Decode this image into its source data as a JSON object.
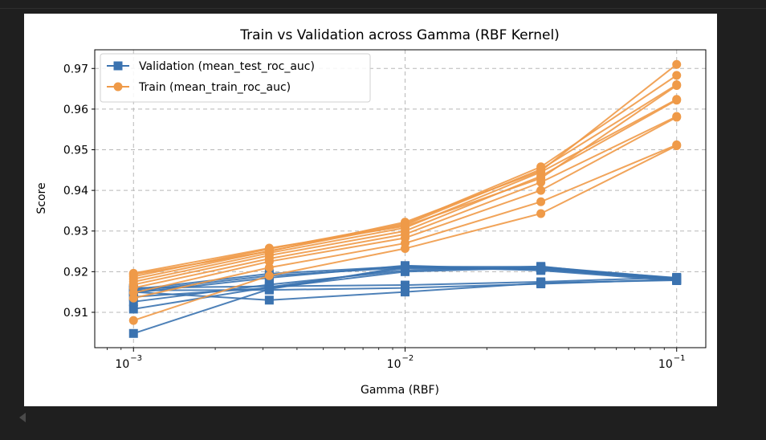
{
  "chart_data": {
    "type": "line",
    "title": "Train vs Validation across Gamma (RBF Kernel)",
    "xlabel": "Gamma (RBF)",
    "ylabel": "Score",
    "xscale": "log",
    "x": [
      0.001,
      0.003162,
      0.01,
      0.031623,
      0.1
    ],
    "xlim": [
      0.00072,
      0.128
    ],
    "ylim": [
      0.9013,
      0.9746
    ],
    "x_ticks": [
      {
        "value": 0.001,
        "base": "10",
        "exp": "−3"
      },
      {
        "value": 0.01,
        "base": "10",
        "exp": "−2"
      },
      {
        "value": 0.1,
        "base": "10",
        "exp": "−1"
      }
    ],
    "y_ticks": [
      "0.91",
      "0.92",
      "0.93",
      "0.94",
      "0.95",
      "0.96",
      "0.97"
    ],
    "grid": true,
    "legend_position": "top-left",
    "series": [
      {
        "name": "Validation (mean_test_roc_auc)",
        "color": "#3b73b0",
        "marker": "square",
        "runs": [
          [
            0.9048,
            0.9157,
            0.9212,
            0.9212,
            0.9184
          ],
          [
            0.9108,
            0.9162,
            0.9208,
            0.9207,
            0.9182
          ],
          [
            0.9126,
            0.9168,
            0.9203,
            0.9213,
            0.9179
          ],
          [
            0.9138,
            0.916,
            0.92,
            0.921,
            0.9185
          ],
          [
            0.9148,
            0.9185,
            0.9215,
            0.9205,
            0.918
          ],
          [
            0.9152,
            0.919,
            0.921,
            0.9208,
            0.9183
          ],
          [
            0.9156,
            0.9195,
            0.9213,
            0.9203,
            0.9178
          ],
          [
            0.916,
            0.9164,
            0.9167,
            0.9175,
            0.9186
          ],
          [
            0.9154,
            0.9155,
            0.916,
            0.917,
            0.9181
          ],
          [
            0.915,
            0.913,
            0.915,
            0.9172,
            0.9179
          ]
        ]
      },
      {
        "name": "Train (mean_train_roc_auc)",
        "color": "#ef9a48",
        "marker": "circle",
        "runs": [
          [
            0.908,
            0.919,
            0.9257,
            0.9343,
            0.951
          ],
          [
            0.9135,
            0.921,
            0.927,
            0.9372,
            0.9512
          ],
          [
            0.9148,
            0.9225,
            0.9283,
            0.94,
            0.958
          ],
          [
            0.916,
            0.9232,
            0.9292,
            0.942,
            0.9582
          ],
          [
            0.9168,
            0.924,
            0.93,
            0.9435,
            0.9622
          ],
          [
            0.9175,
            0.9246,
            0.9308,
            0.9445,
            0.9624
          ],
          [
            0.9182,
            0.9251,
            0.9315,
            0.9452,
            0.966
          ],
          [
            0.9188,
            0.9256,
            0.9318,
            0.9458,
            0.9683
          ],
          [
            0.9193,
            0.925,
            0.9322,
            0.9448,
            0.971
          ],
          [
            0.9196,
            0.9258,
            0.9312,
            0.943,
            0.9658
          ]
        ]
      }
    ]
  }
}
